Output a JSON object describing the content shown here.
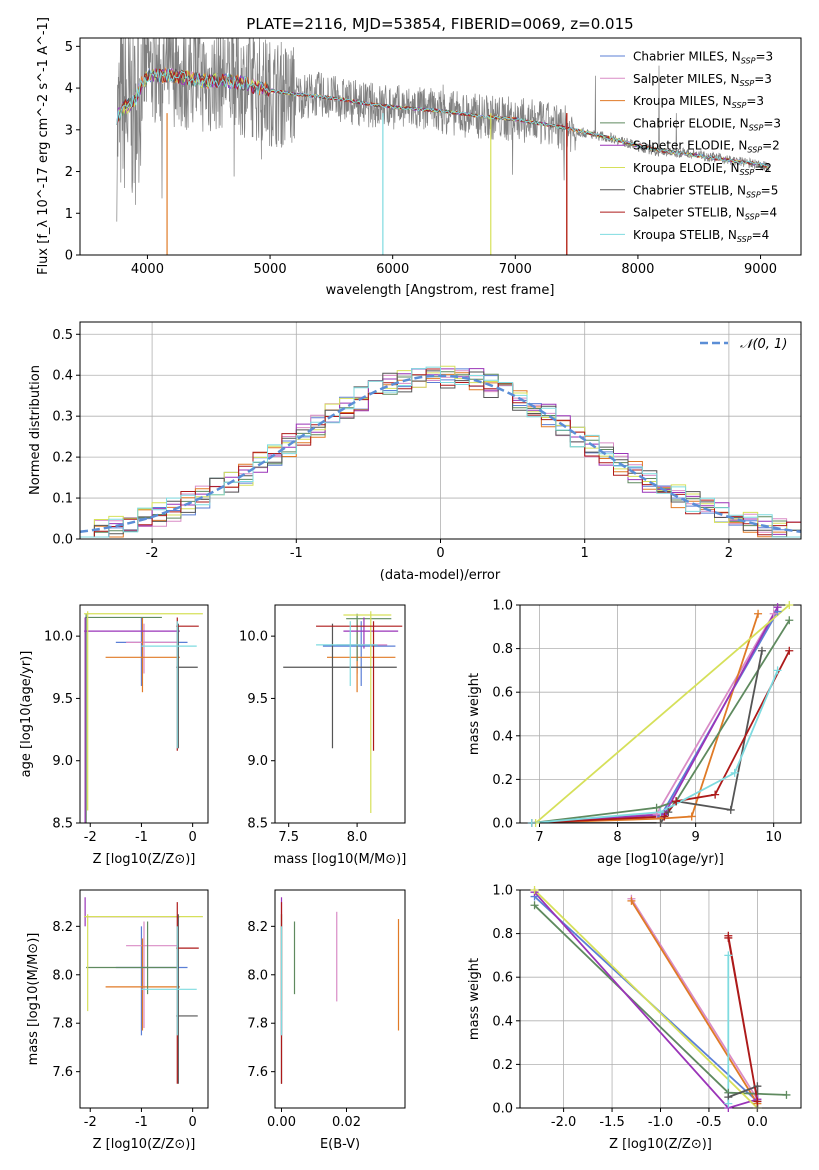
{
  "figure": {
    "title": "PLATE=2116, MJD=53854, FIBERID=0069, z=0.015"
  },
  "series": [
    {
      "name": "Chabrier MILES",
      "nssp": "3",
      "color": "#5b7fd6"
    },
    {
      "name": "Salpeter MILES",
      "nssp": "3",
      "color": "#d98cc6"
    },
    {
      "name": "Kroupa MILES",
      "nssp": "3",
      "color": "#e07a26"
    },
    {
      "name": "Chabrier ELODIE",
      "nssp": "3",
      "color": "#5f8a5f"
    },
    {
      "name": "Salpeter ELODIE",
      "nssp": "2",
      "color": "#9a34b8"
    },
    {
      "name": "Kroupa ELODIE",
      "nssp": "2",
      "color": "#d6e05a"
    },
    {
      "name": "Chabrier STELIB",
      "nssp": "5",
      "color": "#555555"
    },
    {
      "name": "Salpeter STELIB",
      "nssp": "4",
      "color": "#ad1a1a"
    },
    {
      "name": "Kroupa STELIB",
      "nssp": "4",
      "color": "#7fdbe0"
    }
  ],
  "chart_data": [
    {
      "id": "spectrum",
      "type": "line",
      "xlabel": "wavelength [Angstrom, rest frame]",
      "ylabel": "Flux [f_λ 10^-17 erg cm^-2 s^-1 A^-1]",
      "xlim": [
        3450,
        9330
      ],
      "ylim": [
        0,
        5.2
      ],
      "xticks": [
        4000,
        5000,
        6000,
        7000,
        8000,
        9000
      ],
      "yticks": [
        0,
        1,
        2,
        3,
        4,
        5
      ],
      "legend": "top-right",
      "data": {
        "name": "data",
        "color": "#808080",
        "x": [
          3750,
          3800,
          3850,
          3900,
          3950,
          4000,
          4100,
          4200,
          4300,
          4400,
          4500,
          4600,
          4700,
          4800,
          4900,
          5000,
          5200,
          5400,
          5600,
          5800,
          6000,
          6200,
          6400,
          6600,
          6800,
          7000,
          7200,
          7400,
          7600,
          7800,
          8000,
          8200,
          8400,
          8600,
          8800,
          9000,
          9070
        ],
        "y": [
          3.0,
          3.6,
          3.4,
          3.3,
          4.2,
          4.5,
          4.3,
          4.4,
          4.2,
          4.3,
          4.1,
          4.3,
          4.2,
          4.1,
          4.0,
          3.9,
          3.8,
          3.85,
          3.7,
          3.6,
          3.55,
          3.5,
          3.45,
          3.35,
          3.3,
          3.25,
          3.15,
          3.05,
          2.9,
          2.8,
          2.6,
          2.45,
          2.45,
          2.35,
          2.25,
          2.15,
          2.1
        ]
      },
      "model": {
        "x": [
          3750,
          3800,
          3850,
          3900,
          3950,
          4000,
          4100,
          4200,
          4300,
          4400,
          4500,
          4600,
          4700,
          4800,
          4900,
          5000,
          5200,
          5400,
          5600,
          5800,
          6000,
          6200,
          6400,
          6600,
          6800,
          7000,
          7200,
          7400,
          7600,
          7800,
          8000,
          8200,
          8400,
          8600,
          8800,
          9000,
          9070
        ],
        "y": [
          3.3,
          3.5,
          3.6,
          3.7,
          4.1,
          4.3,
          4.3,
          4.3,
          4.25,
          4.2,
          4.15,
          4.2,
          4.15,
          4.1,
          4.0,
          3.95,
          3.85,
          3.8,
          3.72,
          3.62,
          3.55,
          3.5,
          3.45,
          3.37,
          3.3,
          3.25,
          3.15,
          3.05,
          2.92,
          2.78,
          2.62,
          2.5,
          2.42,
          2.33,
          2.25,
          2.17,
          2.12
        ]
      },
      "dips": [
        {
          "series": 2,
          "x": 4160
        },
        {
          "series": 8,
          "x": 5920
        },
        {
          "series": 5,
          "x": 6800
        },
        {
          "series": 2,
          "x": 7420
        },
        {
          "series": 7,
          "x": 7420
        }
      ]
    },
    {
      "id": "residuals",
      "type": "step",
      "xlabel": "(data-model)/error",
      "ylabel": "Normed distribution",
      "xlim": [
        -2.5,
        2.5
      ],
      "ylim": [
        0,
        0.53
      ],
      "xticks": [
        -2,
        -1,
        0,
        1,
        2
      ],
      "yticks": [
        0,
        0.1,
        0.2,
        0.3,
        0.4,
        0.5
      ],
      "grid": true,
      "legend": "top-right",
      "reference_label": "𝒩(0, 1)",
      "reference_color": "#5b8ed6",
      "bin_width": 0.1
    },
    {
      "id": "age_vs_Z",
      "type": "errorbar",
      "xlabel": "Z [log10(Z/Z⊙)]",
      "ylabel": "age [log10(age/yr)]",
      "xlim": [
        -2.2,
        0.3
      ],
      "ylim": [
        8.5,
        10.25
      ],
      "xticks": [
        -2,
        -1,
        0
      ],
      "yticks": [
        8.5,
        9.0,
        9.5,
        10.0
      ],
      "points": [
        {
          "s": 0,
          "x": -1.0,
          "y": 9.95,
          "xl": -1.5,
          "xh": -0.1,
          "yl": 9.6,
          "yh": 10.15
        },
        {
          "s": 1,
          "x": -0.95,
          "y": 9.95,
          "xl": -1.3,
          "xh": -0.3,
          "yl": 9.7,
          "yh": 10.1
        },
        {
          "s": 2,
          "x": -0.98,
          "y": 9.83,
          "xl": -1.7,
          "xh": -0.25,
          "yl": 9.55,
          "yh": 10.15
        },
        {
          "s": 3,
          "x": -2.08,
          "y": 10.15,
          "xl": -2.1,
          "xh": -0.6,
          "yl": 8.5,
          "yh": 10.18
        },
        {
          "s": 4,
          "x": -2.1,
          "y": 10.04,
          "xl": -2.12,
          "xh": -0.25,
          "yl": 8.5,
          "yh": 10.15
        },
        {
          "s": 5,
          "x": -2.05,
          "y": 10.18,
          "xl": -2.12,
          "xh": 0.2,
          "yl": 8.6,
          "yh": 10.2
        },
        {
          "s": 6,
          "x": -0.28,
          "y": 9.75,
          "xl": -0.32,
          "xh": 0.1,
          "yl": 9.1,
          "yh": 10.1
        },
        {
          "s": 7,
          "x": -0.3,
          "y": 10.08,
          "xl": -0.32,
          "xh": 0.12,
          "yl": 9.08,
          "yh": 10.15
        },
        {
          "s": 8,
          "x": -0.3,
          "y": 9.92,
          "xl": -1.0,
          "xh": 0.08,
          "yl": 9.1,
          "yh": 10.12
        }
      ]
    },
    {
      "id": "age_vs_mass",
      "type": "errorbar",
      "xlabel": "mass [log10(M/M⊙)]",
      "ylabel": "",
      "xlim": [
        7.4,
        8.35
      ],
      "ylim": [
        8.5,
        10.25
      ],
      "xticks": [
        7.5,
        8.0
      ],
      "yticks": [
        8.5,
        9.0,
        9.5,
        10.0
      ],
      "points": [
        {
          "s": 0,
          "x": 8.03,
          "y": 9.92,
          "xl": 7.75,
          "xh": 8.28,
          "yl": 9.6,
          "yh": 10.12
        },
        {
          "s": 1,
          "x": 8.0,
          "y": 9.93,
          "xl": 7.85,
          "xh": 8.22,
          "yl": 9.7,
          "yh": 10.1
        },
        {
          "s": 2,
          "x": 8.0,
          "y": 9.83,
          "xl": 7.78,
          "xh": 8.28,
          "yl": 9.55,
          "yh": 10.13
        },
        {
          "s": 3,
          "x": 8.0,
          "y": 10.14,
          "xl": 7.92,
          "xh": 8.25,
          "yl": 9.8,
          "yh": 10.18
        },
        {
          "s": 4,
          "x": 8.05,
          "y": 10.04,
          "xl": 7.9,
          "xh": 8.3,
          "yl": 9.9,
          "yh": 10.15
        },
        {
          "s": 5,
          "x": 8.1,
          "y": 10.17,
          "xl": 7.9,
          "xh": 8.25,
          "yl": 8.58,
          "yh": 10.2
        },
        {
          "s": 6,
          "x": 7.82,
          "y": 9.75,
          "xl": 7.46,
          "xh": 8.29,
          "yl": 9.1,
          "yh": 10.1
        },
        {
          "s": 7,
          "x": 8.12,
          "y": 10.08,
          "xl": 7.7,
          "xh": 8.33,
          "yl": 9.08,
          "yh": 10.12
        },
        {
          "s": 8,
          "x": 7.95,
          "y": 9.93,
          "xl": 7.7,
          "xh": 8.15,
          "yl": 9.6,
          "yh": 10.12
        }
      ]
    },
    {
      "id": "weight_vs_age",
      "type": "line",
      "xlabel": "age [log10(age/yr)]",
      "ylabel": "mass weight",
      "xlim": [
        6.75,
        10.35
      ],
      "ylim": [
        0,
        1.0
      ],
      "xticks": [
        7,
        8,
        9,
        10
      ],
      "yticks": [
        0.0,
        0.2,
        0.4,
        0.6,
        0.8,
        1.0
      ],
      "grid": true,
      "series_points": [
        {
          "s": 0,
          "x": [
            6.9,
            8.55,
            10.05
          ],
          "y": [
            0.0,
            0.03,
            0.97
          ]
        },
        {
          "s": 1,
          "x": [
            6.9,
            8.5,
            10.0
          ],
          "y": [
            0.0,
            0.04,
            0.96
          ]
        },
        {
          "s": 2,
          "x": [
            6.9,
            8.55,
            8.95,
            9.8
          ],
          "y": [
            0.0,
            0.02,
            0.03,
            0.96
          ]
        },
        {
          "s": 3,
          "x": [
            6.9,
            8.5,
            8.75,
            10.2
          ],
          "y": [
            0.0,
            0.07,
            0.1,
            0.93
          ]
        },
        {
          "s": 4,
          "x": [
            6.9,
            8.6,
            10.05
          ],
          "y": [
            0.0,
            0.04,
            0.99
          ]
        },
        {
          "s": 5,
          "x": [
            6.95,
            10.2
          ],
          "y": [
            0.0,
            1.0
          ]
        },
        {
          "s": 6,
          "x": [
            6.9,
            8.55,
            8.65,
            8.75,
            9.45,
            9.85
          ],
          "y": [
            0.0,
            0.0,
            0.05,
            0.1,
            0.06,
            0.79
          ]
        },
        {
          "s": 7,
          "x": [
            6.9,
            8.6,
            8.75,
            9.25,
            10.2
          ],
          "y": [
            0.0,
            0.03,
            0.1,
            0.13,
            0.79
          ]
        },
        {
          "s": 8,
          "x": [
            6.9,
            8.55,
            9.5,
            10.05
          ],
          "y": [
            0.0,
            0.05,
            0.23,
            0.7
          ]
        }
      ]
    },
    {
      "id": "mass_vs_Z",
      "type": "errorbar",
      "xlabel": "Z [log10(Z/Z⊙)]",
      "ylabel": "mass [log10(M/M⊙)]",
      "xlim": [
        -2.2,
        0.3
      ],
      "ylim": [
        7.45,
        8.35
      ],
      "xticks": [
        -2,
        -1,
        0
      ],
      "yticks": [
        7.6,
        7.8,
        8.0,
        8.2
      ],
      "points": [
        {
          "s": 0,
          "x": -1.0,
          "y": 8.03,
          "xl": -1.5,
          "xh": -0.1,
          "yl": 7.75,
          "yh": 8.2
        },
        {
          "s": 1,
          "x": -0.95,
          "y": 8.12,
          "xl": -1.3,
          "xh": -0.3,
          "yl": 7.78,
          "yh": 8.22
        },
        {
          "s": 2,
          "x": -0.98,
          "y": 7.95,
          "xl": -1.7,
          "xh": -0.25,
          "yl": 7.77,
          "yh": 8.15
        },
        {
          "s": 3,
          "x": -0.88,
          "y": 8.03,
          "xl": -2.08,
          "xh": -0.3,
          "yl": 7.92,
          "yh": 8.22
        },
        {
          "s": 4,
          "x": -2.1,
          "y": 8.24,
          "xl": -2.12,
          "xh": -0.25,
          "yl": 8.2,
          "yh": 8.32
        },
        {
          "s": 5,
          "x": -2.05,
          "y": 8.24,
          "xl": -2.12,
          "xh": 0.2,
          "yl": 7.85,
          "yh": 8.25
        },
        {
          "s": 6,
          "x": -0.28,
          "y": 7.83,
          "xl": -0.32,
          "xh": 0.1,
          "yl": 7.55,
          "yh": 8.25
        },
        {
          "s": 7,
          "x": -0.3,
          "y": 8.11,
          "xl": -0.32,
          "xh": 0.12,
          "yl": 7.55,
          "yh": 8.3
        },
        {
          "s": 8,
          "x": -0.3,
          "y": 7.94,
          "xl": -1.0,
          "xh": 0.08,
          "yl": 7.75,
          "yh": 8.2
        }
      ]
    },
    {
      "id": "mass_vs_ebv",
      "type": "errorbar",
      "xlabel": "E(B-V)",
      "ylabel": "",
      "xlim": [
        -0.002,
        0.038
      ],
      "ylim": [
        7.45,
        8.35
      ],
      "xticks": [
        0.0,
        0.02
      ],
      "yticks": [
        7.6,
        7.8,
        8.0,
        8.2
      ],
      "points": [
        {
          "s": 0,
          "x": 0.0,
          "y": 8.03,
          "yl": 7.75,
          "yh": 8.2
        },
        {
          "s": 1,
          "x": 0.017,
          "y": 8.08,
          "yl": 7.89,
          "yh": 8.26
        },
        {
          "s": 2,
          "x": 0.036,
          "y": 7.95,
          "yl": 7.77,
          "yh": 8.23
        },
        {
          "s": 3,
          "x": 0.004,
          "y": 8.03,
          "yl": 7.92,
          "yh": 8.22
        },
        {
          "s": 4,
          "x": 0.0,
          "y": 8.24,
          "yl": 8.2,
          "yh": 8.32
        },
        {
          "s": 5,
          "x": 0.0,
          "y": 8.24,
          "yl": 7.85,
          "yh": 8.25
        },
        {
          "s": 6,
          "x": 0.0,
          "y": 7.83,
          "yl": 7.55,
          "yh": 8.25
        },
        {
          "s": 7,
          "x": 0.0,
          "y": 8.11,
          "yl": 7.55,
          "yh": 8.3
        },
        {
          "s": 8,
          "x": 0.0,
          "y": 7.94,
          "yl": 7.75,
          "yh": 8.2
        }
      ]
    },
    {
      "id": "weight_vs_Z",
      "type": "line",
      "xlabel": "Z [log10(Z/Z⊙)]",
      "ylabel": "mass weight",
      "xlim": [
        -2.45,
        0.45
      ],
      "ylim": [
        0,
        1.0
      ],
      "xticks": [
        -2.0,
        -1.5,
        -1.0,
        -0.5,
        0.0
      ],
      "yticks": [
        0.0,
        0.2,
        0.4,
        0.6,
        0.8,
        1.0
      ],
      "grid": true,
      "series_points": [
        {
          "s": 0,
          "x": [
            -2.3,
            0.0
          ],
          "y": [
            0.97,
            0.03
          ]
        },
        {
          "s": 1,
          "x": [
            -1.3,
            0.0
          ],
          "y": [
            0.96,
            0.04
          ]
        },
        {
          "s": 2,
          "x": [
            -1.3,
            0.0
          ],
          "y": [
            0.95,
            0.02
          ]
        },
        {
          "s": 3,
          "x": [
            -2.3,
            -0.3,
            0.3
          ],
          "y": [
            0.93,
            0.07,
            0.06
          ]
        },
        {
          "s": 4,
          "x": [
            -2.3,
            -0.3,
            0.0
          ],
          "y": [
            0.99,
            0.0,
            0.04
          ]
        },
        {
          "s": 5,
          "x": [
            -2.3,
            0.0
          ],
          "y": [
            1.0,
            0.0
          ]
        },
        {
          "s": 6,
          "x": [
            -0.3,
            0.0,
            0.0
          ],
          "y": [
            0.05,
            0.1,
            0.0
          ]
        },
        {
          "s": 7,
          "x": [
            -0.3,
            0.0,
            -0.3
          ],
          "y": [
            0.79,
            0.03,
            0.78
          ]
        },
        {
          "s": 8,
          "x": [
            -0.3,
            -0.3
          ],
          "y": [
            0.02,
            0.7
          ]
        }
      ]
    }
  ]
}
